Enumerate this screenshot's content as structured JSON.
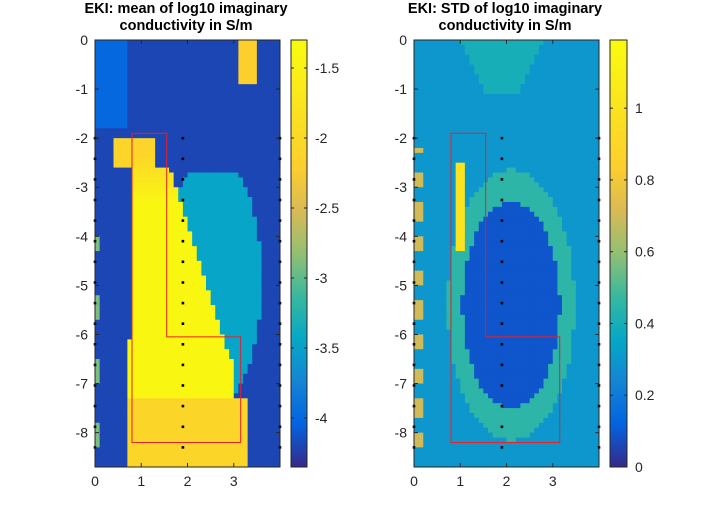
{
  "chart_data": [
    {
      "type": "heatmap",
      "title": "EKI: mean of log10 imaginary conductivity in S/m",
      "title_lines": [
        "EKI: mean of log10 imaginary",
        "conductivity in S/m"
      ],
      "xlim": [
        0,
        4
      ],
      "ylim": [
        -8.7,
        0
      ],
      "x_ticks": [
        0,
        1,
        2,
        3
      ],
      "y_ticks": [
        0,
        -1,
        -2,
        -3,
        -4,
        -5,
        -6,
        -7,
        -8
      ],
      "colorbar": {
        "colormap": "parula",
        "range": [
          -4.35,
          -1.3
        ],
        "ticks": [
          -1.5,
          -2,
          -2.5,
          -3,
          -3.5,
          -4
        ]
      },
      "regions": [
        {
          "name": "background",
          "value": -4.2
        },
        {
          "name": "left fill near surface",
          "value": -4.0
        },
        {
          "name": "surface anomaly near x 3.3",
          "value": -2.2
        },
        {
          "name": "upper-left anomaly",
          "value": -2.1
        },
        {
          "name": "main plume core",
          "value": -1.4
        },
        {
          "name": "plume bottom",
          "value": -2.05
        },
        {
          "name": "right halo",
          "value": -3.45
        }
      ],
      "target_outline": [
        [
          0.8,
          -1.9
        ],
        [
          1.55,
          -1.9
        ],
        [
          1.55,
          -6.05
        ],
        [
          3.15,
          -6.05
        ],
        [
          3.15,
          -8.2
        ],
        [
          0.8,
          -8.2
        ]
      ],
      "electrodes_x": [
        0,
        1.9,
        4
      ]
    },
    {
      "type": "heatmap",
      "title": "EKI: STD of log10 imaginary conductivity in S/m",
      "title_lines": [
        "EKI: STD of log10 imaginary",
        "conductivity in S/m"
      ],
      "xlim": [
        0,
        4
      ],
      "ylim": [
        -8.7,
        0
      ],
      "x_ticks": [
        0,
        1,
        2,
        3
      ],
      "y_ticks": [
        0,
        -1,
        -2,
        -3,
        -4,
        -5,
        -6,
        -7,
        -8
      ],
      "colorbar": {
        "colormap": "parula",
        "range": [
          0,
          1.19
        ],
        "ticks": [
          0,
          0.2,
          0.4,
          0.6,
          0.8,
          1
        ]
      },
      "regions": [
        {
          "name": "background",
          "value": 0.3
        },
        {
          "name": "inner core",
          "value": 0.09
        },
        {
          "name": "ring",
          "value": 0.45
        },
        {
          "name": "surface blob",
          "value": 0.4
        },
        {
          "name": "left edge noise",
          "value": 0.7
        },
        {
          "name": "target edge spots",
          "value": 1.0
        }
      ],
      "target_outline": [
        [
          0.8,
          -1.9
        ],
        [
          1.55,
          -1.9
        ],
        [
          1.55,
          -6.05
        ],
        [
          3.15,
          -6.05
        ],
        [
          3.15,
          -8.2
        ],
        [
          0.8,
          -8.2
        ]
      ],
      "electrodes_x": [
        0,
        1.9,
        4
      ]
    }
  ]
}
